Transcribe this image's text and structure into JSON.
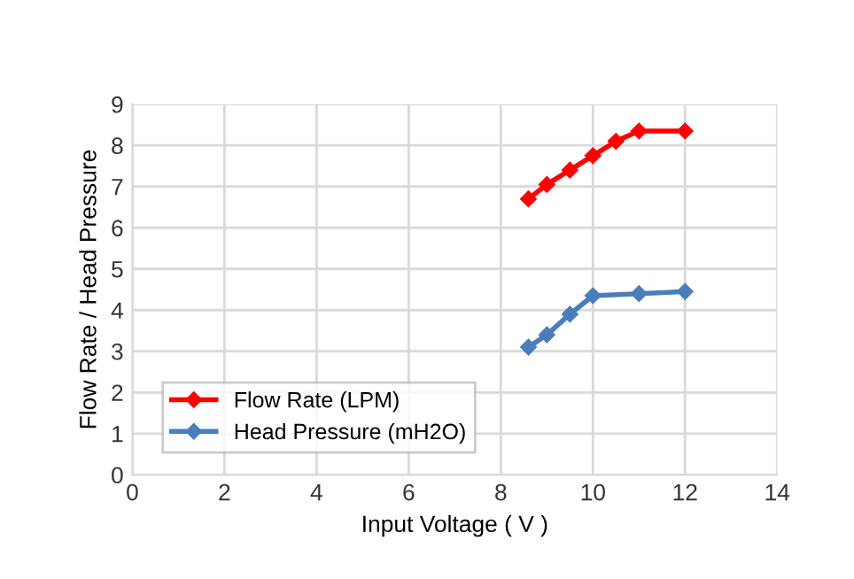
{
  "chart_data": {
    "type": "line",
    "xlabel": "Input Voltage ( V )",
    "ylabel": "Flow Rate / Head Pressure",
    "series": [
      {
        "name": "Flow Rate (LPM)",
        "color": "#ff0000",
        "x": [
          8.6,
          9.0,
          9.5,
          10.0,
          10.5,
          11.0,
          12.0
        ],
        "values": [
          6.7,
          7.05,
          7.4,
          7.75,
          8.1,
          8.35,
          8.35
        ]
      },
      {
        "name": "Head Pressure (mH2O)",
        "color": "#4a7ebb",
        "x": [
          8.6,
          9.0,
          9.5,
          10.0,
          11.0,
          12.0
        ],
        "values": [
          3.1,
          3.4,
          3.9,
          4.35,
          4.4,
          4.45
        ]
      }
    ],
    "xlim": [
      0,
      14
    ],
    "xticks": [
      0,
      2,
      4,
      6,
      8,
      10,
      12,
      14
    ],
    "ylim": [
      0,
      9
    ],
    "yticks": [
      0,
      1,
      2,
      3,
      4,
      5,
      6,
      7,
      8,
      9
    ],
    "grid": true,
    "legend": "bottom left",
    "marker": "diamond",
    "line_style": "solid"
  }
}
